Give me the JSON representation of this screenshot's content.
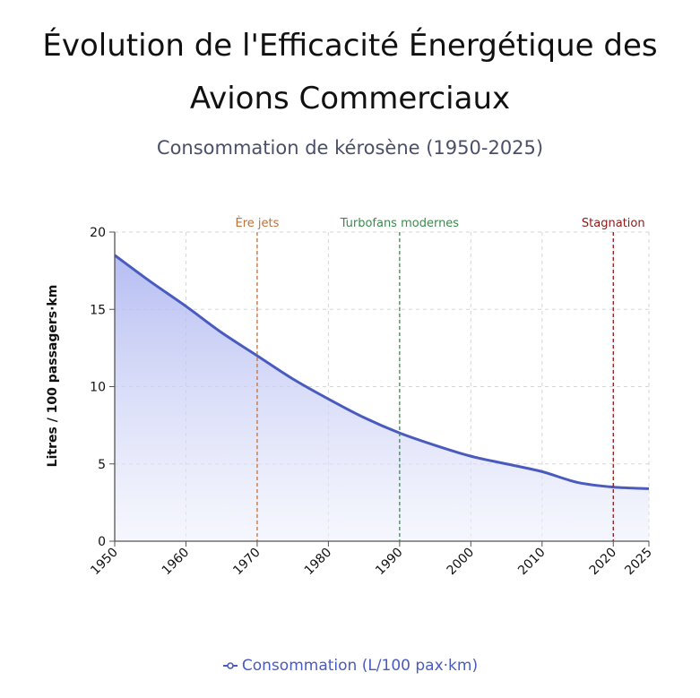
{
  "chart_data": {
    "type": "area",
    "title": "Évolution de l'Efficacité Énergétique des Avions Commerciaux",
    "subtitle": "Consommation de kérosène (1950-2025)",
    "ylabel": "Litres / 100 passagers·km",
    "xlabel": "",
    "xlim": [
      1950,
      2025
    ],
    "ylim": [
      0,
      20
    ],
    "x_ticks": [
      1950,
      1960,
      1970,
      1980,
      1990,
      2000,
      2010,
      2020,
      2025
    ],
    "y_ticks": [
      0,
      5,
      10,
      15,
      20
    ],
    "grid": true,
    "legend_position": "bottom",
    "series": [
      {
        "name": "Consommation (L/100 pax·km)",
        "color": "#4a5bbf",
        "x": [
          1950,
          1955,
          1960,
          1965,
          1970,
          1975,
          1980,
          1985,
          1990,
          1995,
          2000,
          2005,
          2010,
          2015,
          2020,
          2025
        ],
        "values": [
          18.5,
          16.8,
          15.2,
          13.5,
          12.0,
          10.5,
          9.2,
          8.0,
          7.0,
          6.2,
          5.5,
          5.0,
          4.5,
          3.8,
          3.5,
          3.4
        ]
      }
    ],
    "annotations": [
      {
        "x": 1970,
        "label": "Ère jets",
        "color": "#c0703a"
      },
      {
        "x": 1990,
        "label": "Turbofans modernes",
        "color": "#3a8a4e"
      },
      {
        "x": 2020,
        "label": "Stagnation",
        "color": "#8b1a1a"
      }
    ]
  }
}
